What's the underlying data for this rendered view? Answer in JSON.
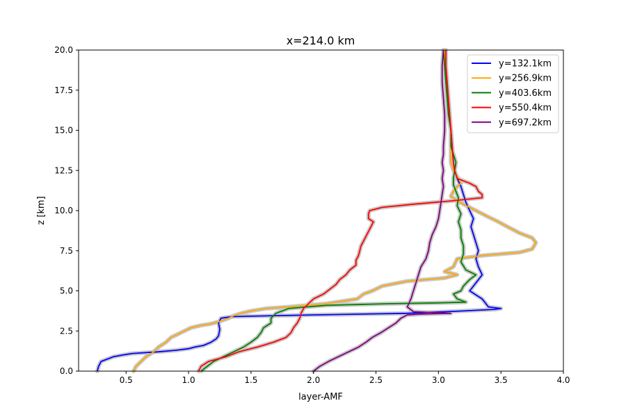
{
  "chart_data": {
    "type": "line",
    "title": "x=214.0 km",
    "xlabel": "layer-AMF",
    "ylabel": "z [km]",
    "xlim": [
      0.12,
      4.0
    ],
    "ylim": [
      0,
      20
    ],
    "xticks": [
      0.5,
      1.0,
      1.5,
      2.0,
      2.5,
      3.0,
      3.5,
      4.0
    ],
    "xtick_labels": [
      "0.5",
      "1.0",
      "1.5",
      "2.0",
      "2.5",
      "3.0",
      "3.5",
      "4.0"
    ],
    "yticks": [
      0,
      2.5,
      5,
      7.5,
      10,
      12.5,
      15,
      17.5,
      20
    ],
    "ytick_labels": [
      "0.0",
      "2.5",
      "5.0",
      "7.5",
      "10.0",
      "12.5",
      "15.0",
      "17.5",
      "20.0"
    ],
    "grid": false,
    "legend_position": "upper right",
    "uncertainty_color": "#c8c8c8",
    "series": [
      {
        "name": "y=132.1km",
        "color": "#0000ff",
        "points": [
          [
            0.27,
            0.0
          ],
          [
            0.28,
            0.3
          ],
          [
            0.3,
            0.6
          ],
          [
            0.4,
            0.9
          ],
          [
            0.47,
            1.0
          ],
          [
            0.55,
            1.1
          ],
          [
            0.75,
            1.2
          ],
          [
            0.9,
            1.3
          ],
          [
            1.0,
            1.4
          ],
          [
            1.05,
            1.5
          ],
          [
            1.12,
            1.6
          ],
          [
            1.18,
            1.8
          ],
          [
            1.22,
            2.0
          ],
          [
            1.24,
            2.2
          ],
          [
            1.25,
            2.6
          ],
          [
            1.24,
            3.0
          ],
          [
            1.26,
            3.3
          ],
          [
            1.35,
            3.4
          ],
          [
            2.0,
            3.5
          ],
          [
            2.75,
            3.6
          ],
          [
            3.2,
            3.75
          ],
          [
            3.45,
            3.85
          ],
          [
            3.5,
            3.9
          ],
          [
            3.4,
            4.0
          ],
          [
            3.35,
            4.5
          ],
          [
            3.25,
            5.0
          ],
          [
            3.3,
            5.5
          ],
          [
            3.35,
            6.0
          ],
          [
            3.32,
            6.5
          ],
          [
            3.3,
            7.0
          ],
          [
            3.32,
            7.5
          ],
          [
            3.3,
            8.0
          ],
          [
            3.28,
            8.5
          ],
          [
            3.26,
            9.0
          ],
          [
            3.28,
            9.5
          ],
          [
            3.25,
            10.0
          ],
          [
            3.22,
            10.5
          ],
          [
            3.2,
            11.0
          ],
          [
            3.18,
            11.5
          ],
          [
            3.15,
            12.0
          ],
          [
            3.13,
            12.5
          ],
          [
            3.12,
            13.0
          ],
          [
            3.11,
            14.0
          ],
          [
            3.1,
            15.0
          ],
          [
            3.08,
            16.0
          ],
          [
            3.07,
            17.0
          ],
          [
            3.06,
            18.0
          ],
          [
            3.05,
            19.0
          ],
          [
            3.05,
            20.0
          ]
        ]
      },
      {
        "name": "y=256.9km",
        "color": "#ffa500",
        "points": [
          [
            0.56,
            0.0
          ],
          [
            0.58,
            0.3
          ],
          [
            0.62,
            0.6
          ],
          [
            0.66,
            0.9
          ],
          [
            0.72,
            1.2
          ],
          [
            0.76,
            1.5
          ],
          [
            0.82,
            1.8
          ],
          [
            0.86,
            2.1
          ],
          [
            0.94,
            2.4
          ],
          [
            1.02,
            2.7
          ],
          [
            1.1,
            2.85
          ],
          [
            1.18,
            2.95
          ],
          [
            1.25,
            3.1
          ],
          [
            1.32,
            3.3
          ],
          [
            1.36,
            3.45
          ],
          [
            1.42,
            3.6
          ],
          [
            1.5,
            3.75
          ],
          [
            1.62,
            3.9
          ],
          [
            1.8,
            4.0
          ],
          [
            2.1,
            4.2
          ],
          [
            2.35,
            4.5
          ],
          [
            2.4,
            4.8
          ],
          [
            2.47,
            5.0
          ],
          [
            2.55,
            5.3
          ],
          [
            2.75,
            5.6
          ],
          [
            3.05,
            5.8
          ],
          [
            3.15,
            6.0
          ],
          [
            3.05,
            6.2
          ],
          [
            3.12,
            6.5
          ],
          [
            3.15,
            7.0
          ],
          [
            3.35,
            7.2
          ],
          [
            3.65,
            7.4
          ],
          [
            3.75,
            7.6
          ],
          [
            3.78,
            8.0
          ],
          [
            3.75,
            8.3
          ],
          [
            3.65,
            8.6
          ],
          [
            3.55,
            9.0
          ],
          [
            3.48,
            9.3
          ],
          [
            3.4,
            9.6
          ],
          [
            3.35,
            9.8
          ],
          [
            3.25,
            10.2
          ],
          [
            3.15,
            10.6
          ],
          [
            3.1,
            10.9
          ],
          [
            3.12,
            11.2
          ],
          [
            3.15,
            11.5
          ],
          [
            3.18,
            11.7
          ],
          [
            3.16,
            12.0
          ],
          [
            3.12,
            12.5
          ],
          [
            3.1,
            13.0
          ],
          [
            3.1,
            14.0
          ],
          [
            3.1,
            15.0
          ],
          [
            3.08,
            16.0
          ],
          [
            3.07,
            17.0
          ],
          [
            3.06,
            18.0
          ],
          [
            3.05,
            19.0
          ],
          [
            3.05,
            20.0
          ]
        ]
      },
      {
        "name": "y=403.6km",
        "color": "#008000",
        "points": [
          [
            1.1,
            0.0
          ],
          [
            1.15,
            0.3
          ],
          [
            1.2,
            0.6
          ],
          [
            1.28,
            0.9
          ],
          [
            1.36,
            1.2
          ],
          [
            1.44,
            1.5
          ],
          [
            1.5,
            1.8
          ],
          [
            1.55,
            2.1
          ],
          [
            1.58,
            2.4
          ],
          [
            1.6,
            2.7
          ],
          [
            1.66,
            3.0
          ],
          [
            1.66,
            3.3
          ],
          [
            1.7,
            3.6
          ],
          [
            1.8,
            3.9
          ],
          [
            2.1,
            4.1
          ],
          [
            2.6,
            4.2
          ],
          [
            3.0,
            4.25
          ],
          [
            3.22,
            4.3
          ],
          [
            3.15,
            4.5
          ],
          [
            3.12,
            4.8
          ],
          [
            3.18,
            5.0
          ],
          [
            3.2,
            5.3
          ],
          [
            3.25,
            5.7
          ],
          [
            3.3,
            6.0
          ],
          [
            3.22,
            6.3
          ],
          [
            3.18,
            6.8
          ],
          [
            3.2,
            7.3
          ],
          [
            3.2,
            7.8
          ],
          [
            3.18,
            8.3
          ],
          [
            3.18,
            8.8
          ],
          [
            3.16,
            9.3
          ],
          [
            3.18,
            9.8
          ],
          [
            3.15,
            10.3
          ],
          [
            3.16,
            10.8
          ],
          [
            3.14,
            11.2
          ],
          [
            3.12,
            11.6
          ],
          [
            3.12,
            12.0
          ],
          [
            3.13,
            12.5
          ],
          [
            3.14,
            13.0
          ],
          [
            3.12,
            13.5
          ],
          [
            3.1,
            14.0
          ],
          [
            3.1,
            15.0
          ],
          [
            3.08,
            16.0
          ],
          [
            3.07,
            17.0
          ],
          [
            3.06,
            18.0
          ],
          [
            3.05,
            19.0
          ],
          [
            3.04,
            20.0
          ]
        ]
      },
      {
        "name": "y=550.4km",
        "color": "#ff0000",
        "points": [
          [
            1.08,
            0.0
          ],
          [
            1.1,
            0.3
          ],
          [
            1.16,
            0.6
          ],
          [
            1.3,
            0.9
          ],
          [
            1.4,
            1.2
          ],
          [
            1.55,
            1.5
          ],
          [
            1.68,
            1.8
          ],
          [
            1.78,
            2.1
          ],
          [
            1.82,
            2.4
          ],
          [
            1.84,
            2.7
          ],
          [
            1.87,
            3.0
          ],
          [
            1.89,
            3.3
          ],
          [
            1.9,
            3.6
          ],
          [
            1.92,
            3.9
          ],
          [
            1.96,
            4.2
          ],
          [
            2.0,
            4.5
          ],
          [
            2.08,
            4.8
          ],
          [
            2.13,
            5.1
          ],
          [
            2.18,
            5.4
          ],
          [
            2.21,
            5.7
          ],
          [
            2.26,
            6.0
          ],
          [
            2.29,
            6.3
          ],
          [
            2.34,
            6.6
          ],
          [
            2.34,
            6.9
          ],
          [
            2.36,
            7.2
          ],
          [
            2.37,
            7.5
          ],
          [
            2.38,
            7.8
          ],
          [
            2.4,
            8.1
          ],
          [
            2.42,
            8.4
          ],
          [
            2.44,
            8.7
          ],
          [
            2.46,
            9.0
          ],
          [
            2.48,
            9.3
          ],
          [
            2.44,
            9.5
          ],
          [
            2.44,
            9.8
          ],
          [
            2.45,
            10.0
          ],
          [
            2.55,
            10.2
          ],
          [
            2.8,
            10.4
          ],
          [
            3.1,
            10.6
          ],
          [
            3.35,
            10.8
          ],
          [
            3.35,
            11.0
          ],
          [
            3.32,
            11.2
          ],
          [
            3.3,
            11.5
          ],
          [
            3.25,
            11.7
          ],
          [
            3.15,
            12.0
          ],
          [
            3.13,
            12.5
          ],
          [
            3.12,
            13.0
          ],
          [
            3.11,
            14.0
          ],
          [
            3.1,
            15.0
          ],
          [
            3.09,
            16.0
          ],
          [
            3.08,
            17.0
          ],
          [
            3.07,
            18.0
          ],
          [
            3.06,
            19.0
          ],
          [
            3.06,
            20.0
          ]
        ]
      },
      {
        "name": "y=697.2km",
        "color": "#800080",
        "points": [
          [
            2.0,
            0.0
          ],
          [
            2.05,
            0.3
          ],
          [
            2.12,
            0.6
          ],
          [
            2.2,
            0.9
          ],
          [
            2.28,
            1.2
          ],
          [
            2.36,
            1.5
          ],
          [
            2.42,
            1.8
          ],
          [
            2.47,
            2.1
          ],
          [
            2.54,
            2.4
          ],
          [
            2.6,
            2.7
          ],
          [
            2.66,
            3.0
          ],
          [
            2.7,
            3.3
          ],
          [
            2.75,
            3.5
          ],
          [
            2.85,
            3.55
          ],
          [
            3.1,
            3.6
          ],
          [
            2.8,
            3.7
          ],
          [
            2.75,
            4.0
          ],
          [
            2.78,
            4.5
          ],
          [
            2.8,
            5.0
          ],
          [
            2.82,
            5.5
          ],
          [
            2.84,
            6.0
          ],
          [
            2.86,
            6.5
          ],
          [
            2.9,
            7.0
          ],
          [
            2.92,
            7.5
          ],
          [
            2.93,
            8.0
          ],
          [
            2.95,
            8.5
          ],
          [
            2.98,
            9.0
          ],
          [
            3.0,
            9.5
          ],
          [
            3.01,
            10.0
          ],
          [
            3.02,
            10.5
          ],
          [
            3.03,
            11.0
          ],
          [
            3.04,
            11.5
          ],
          [
            3.03,
            12.0
          ],
          [
            3.04,
            12.5
          ],
          [
            3.03,
            13.0
          ],
          [
            3.04,
            13.5
          ],
          [
            3.04,
            14.0
          ],
          [
            3.05,
            15.0
          ],
          [
            3.05,
            16.0
          ],
          [
            3.04,
            17.0
          ],
          [
            3.03,
            18.0
          ],
          [
            3.03,
            19.0
          ],
          [
            3.04,
            20.0
          ]
        ]
      }
    ]
  }
}
